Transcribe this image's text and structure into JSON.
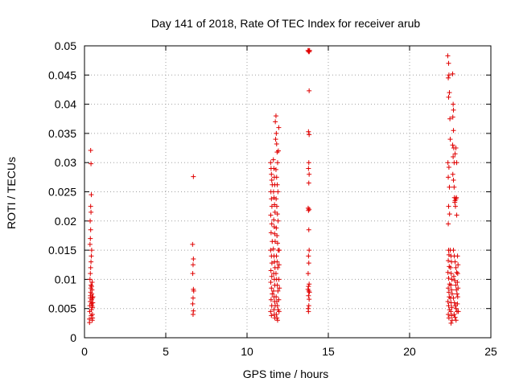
{
  "chart_data": {
    "type": "scatter",
    "title": "Day 141 of 2018, Rate Of TEC Index for receiver arub",
    "xlabel": "GPS time / hours",
    "ylabel": "ROTI / TECUs",
    "xlim": [
      0,
      25
    ],
    "ylim": [
      0,
      0.05
    ],
    "x_ticks": [
      0,
      5,
      10,
      15,
      20,
      25
    ],
    "y_ticks": [
      0,
      0.005,
      0.01,
      0.015,
      0.02,
      0.025,
      0.03,
      0.035,
      0.04,
      0.045,
      0.05
    ],
    "x_tick_labels": [
      "0",
      "5",
      "10",
      "15",
      "20",
      "25"
    ],
    "y_tick_labels": [
      "0",
      "0.005",
      "0.01",
      "0.015",
      "0.02",
      "0.025",
      "0.03",
      "0.035",
      "0.04",
      "0.045",
      "0.05"
    ],
    "grid": true,
    "marker": "+",
    "marker_color": "#e00000",
    "series": [
      {
        "name": "ROTI",
        "points": [
          [
            0.3,
            0.0032
          ],
          [
            0.32,
            0.0045
          ],
          [
            0.33,
            0.0055
          ],
          [
            0.35,
            0.0062
          ],
          [
            0.36,
            0.0068
          ],
          [
            0.37,
            0.0072
          ],
          [
            0.38,
            0.0078
          ],
          [
            0.39,
            0.0085
          ],
          [
            0.4,
            0.009
          ],
          [
            0.41,
            0.0038
          ],
          [
            0.42,
            0.0048
          ],
          [
            0.43,
            0.0058
          ],
          [
            0.44,
            0.0065
          ],
          [
            0.45,
            0.0075
          ],
          [
            0.46,
            0.0082
          ],
          [
            0.47,
            0.0095
          ],
          [
            0.48,
            0.003
          ],
          [
            0.49,
            0.004
          ],
          [
            0.5,
            0.0052
          ],
          [
            0.51,
            0.006
          ],
          [
            0.52,
            0.007
          ],
          [
            0.34,
            0.01
          ],
          [
            0.36,
            0.011
          ],
          [
            0.38,
            0.012
          ],
          [
            0.4,
            0.013
          ],
          [
            0.42,
            0.014
          ],
          [
            0.44,
            0.015
          ],
          [
            0.34,
            0.016
          ],
          [
            0.36,
            0.017
          ],
          [
            0.38,
            0.0185
          ],
          [
            0.35,
            0.02
          ],
          [
            0.4,
            0.0215
          ],
          [
            0.38,
            0.0225
          ],
          [
            0.42,
            0.0245
          ],
          [
            0.4,
            0.0298
          ],
          [
            0.38,
            0.0321
          ],
          [
            0.46,
            0.0055
          ],
          [
            0.48,
            0.0068
          ],
          [
            0.44,
            0.0088
          ],
          [
            0.5,
            0.0034
          ],
          [
            0.31,
            0.0026
          ],
          [
            6.7,
            0.0276
          ],
          [
            6.65,
            0.016
          ],
          [
            6.7,
            0.0135
          ],
          [
            6.68,
            0.0125
          ],
          [
            6.66,
            0.011
          ],
          [
            6.7,
            0.0083
          ],
          [
            6.72,
            0.008
          ],
          [
            6.68,
            0.0068
          ],
          [
            6.66,
            0.0058
          ],
          [
            6.7,
            0.0046
          ],
          [
            6.68,
            0.004
          ],
          [
            11.45,
            0.03
          ],
          [
            11.48,
            0.029
          ],
          [
            11.5,
            0.028
          ],
          [
            11.52,
            0.027
          ],
          [
            11.55,
            0.0262
          ],
          [
            11.47,
            0.025
          ],
          [
            11.5,
            0.0238
          ],
          [
            11.53,
            0.0225
          ],
          [
            11.46,
            0.021
          ],
          [
            11.52,
            0.0195
          ],
          [
            11.48,
            0.018
          ],
          [
            11.55,
            0.0165
          ],
          [
            11.45,
            0.015
          ],
          [
            11.5,
            0.014
          ],
          [
            11.53,
            0.0128
          ],
          [
            11.47,
            0.0115
          ],
          [
            11.52,
            0.0105
          ],
          [
            11.46,
            0.0095
          ],
          [
            11.5,
            0.0085
          ],
          [
            11.55,
            0.0075
          ],
          [
            11.48,
            0.0065
          ],
          [
            11.52,
            0.0055
          ],
          [
            11.45,
            0.0045
          ],
          [
            11.5,
            0.0038
          ],
          [
            11.62,
            0.0305
          ],
          [
            11.65,
            0.029
          ],
          [
            11.68,
            0.0275
          ],
          [
            11.7,
            0.0262
          ],
          [
            11.63,
            0.025
          ],
          [
            11.66,
            0.024
          ],
          [
            11.69,
            0.0228
          ],
          [
            11.72,
            0.0215
          ],
          [
            11.64,
            0.0202
          ],
          [
            11.67,
            0.019
          ],
          [
            11.7,
            0.0178
          ],
          [
            11.73,
            0.0165
          ],
          [
            11.62,
            0.0152
          ],
          [
            11.66,
            0.014
          ],
          [
            11.69,
            0.013
          ],
          [
            11.72,
            0.012
          ],
          [
            11.64,
            0.011
          ],
          [
            11.68,
            0.01
          ],
          [
            11.71,
            0.009
          ],
          [
            11.63,
            0.008
          ],
          [
            11.66,
            0.007
          ],
          [
            11.7,
            0.0062
          ],
          [
            11.73,
            0.0055
          ],
          [
            11.65,
            0.0048
          ],
          [
            11.68,
            0.004
          ],
          [
            11.71,
            0.0034
          ],
          [
            11.8,
            0.035
          ],
          [
            11.82,
            0.0332
          ],
          [
            11.85,
            0.0318
          ],
          [
            11.88,
            0.03
          ],
          [
            11.78,
            0.0288
          ],
          [
            11.82,
            0.0275
          ],
          [
            11.86,
            0.0262
          ],
          [
            11.9,
            0.025
          ],
          [
            11.79,
            0.0238
          ],
          [
            11.83,
            0.0225
          ],
          [
            11.87,
            0.0212
          ],
          [
            11.91,
            0.02
          ],
          [
            11.8,
            0.0188
          ],
          [
            11.84,
            0.0175
          ],
          [
            11.88,
            0.0162
          ],
          [
            11.92,
            0.015
          ],
          [
            11.81,
            0.014
          ],
          [
            11.85,
            0.013
          ],
          [
            11.89,
            0.012
          ],
          [
            11.78,
            0.011
          ],
          [
            11.82,
            0.01
          ],
          [
            11.86,
            0.009
          ],
          [
            11.9,
            0.008
          ],
          [
            11.79,
            0.007
          ],
          [
            11.83,
            0.0062
          ],
          [
            11.87,
            0.0055
          ],
          [
            11.91,
            0.0048
          ],
          [
            11.8,
            0.004
          ],
          [
            11.84,
            0.0034
          ],
          [
            11.88,
            0.003
          ],
          [
            11.74,
            0.037
          ],
          [
            11.78,
            0.038
          ],
          [
            11.95,
            0.036
          ],
          [
            11.76,
            0.034
          ],
          [
            11.93,
            0.032
          ],
          [
            11.98,
            0.015
          ],
          [
            11.97,
            0.0125
          ],
          [
            11.96,
            0.01
          ],
          [
            11.99,
            0.0085
          ],
          [
            11.95,
            0.0065
          ],
          [
            11.97,
            0.0045
          ],
          [
            13.75,
            0.0492
          ],
          [
            13.8,
            0.0492
          ],
          [
            13.85,
            0.0492
          ],
          [
            13.78,
            0.049
          ],
          [
            13.83,
            0.049
          ],
          [
            13.82,
            0.0423
          ],
          [
            13.78,
            0.0353
          ],
          [
            13.82,
            0.0348
          ],
          [
            13.8,
            0.03
          ],
          [
            13.78,
            0.029
          ],
          [
            13.82,
            0.028
          ],
          [
            13.8,
            0.0265
          ],
          [
            13.76,
            0.0222
          ],
          [
            13.82,
            0.022
          ],
          [
            13.78,
            0.0218
          ],
          [
            13.8,
            0.0185
          ],
          [
            13.82,
            0.015
          ],
          [
            13.78,
            0.014
          ],
          [
            13.8,
            0.0128
          ],
          [
            13.76,
            0.011
          ],
          [
            13.82,
            0.0092
          ],
          [
            13.78,
            0.0088
          ],
          [
            13.75,
            0.0083
          ],
          [
            13.8,
            0.008
          ],
          [
            13.84,
            0.0078
          ],
          [
            13.78,
            0.0072
          ],
          [
            13.82,
            0.0066
          ],
          [
            13.8,
            0.0055
          ],
          [
            13.76,
            0.005
          ],
          [
            13.78,
            0.0045
          ],
          [
            22.35,
            0.0483
          ],
          [
            22.4,
            0.047
          ],
          [
            22.42,
            0.045
          ],
          [
            22.38,
            0.0445
          ],
          [
            22.45,
            0.042
          ],
          [
            22.4,
            0.0412
          ],
          [
            22.48,
            0.0375
          ],
          [
            22.5,
            0.034
          ],
          [
            22.36,
            0.03
          ],
          [
            22.42,
            0.0292
          ],
          [
            22.38,
            0.0275
          ],
          [
            22.45,
            0.0258
          ],
          [
            22.4,
            0.0225
          ],
          [
            22.46,
            0.0212
          ],
          [
            22.38,
            0.0195
          ],
          [
            22.4,
            0.015
          ],
          [
            22.42,
            0.0142
          ],
          [
            22.38,
            0.0132
          ],
          [
            22.44,
            0.0122
          ],
          [
            22.36,
            0.0112
          ],
          [
            22.4,
            0.0102
          ],
          [
            22.46,
            0.0092
          ],
          [
            22.38,
            0.0085
          ],
          [
            22.42,
            0.0078
          ],
          [
            22.44,
            0.007
          ],
          [
            22.36,
            0.0062
          ],
          [
            22.4,
            0.0055
          ],
          [
            22.46,
            0.0048
          ],
          [
            22.38,
            0.004
          ],
          [
            22.42,
            0.0034
          ],
          [
            22.5,
            0.015
          ],
          [
            22.55,
            0.014
          ],
          [
            22.58,
            0.013
          ],
          [
            22.52,
            0.012
          ],
          [
            22.56,
            0.011
          ],
          [
            22.6,
            0.01
          ],
          [
            22.54,
            0.009
          ],
          [
            22.58,
            0.0082
          ],
          [
            22.62,
            0.0075
          ],
          [
            22.52,
            0.0068
          ],
          [
            22.56,
            0.006
          ],
          [
            22.6,
            0.0052
          ],
          [
            22.54,
            0.0045
          ],
          [
            22.58,
            0.0038
          ],
          [
            22.62,
            0.003
          ],
          [
            22.55,
            0.0025
          ],
          [
            22.65,
            0.0452
          ],
          [
            22.68,
            0.04
          ],
          [
            22.7,
            0.039
          ],
          [
            22.66,
            0.0378
          ],
          [
            22.7,
            0.0355
          ],
          [
            22.65,
            0.033
          ],
          [
            22.72,
            0.0325
          ],
          [
            22.68,
            0.031
          ],
          [
            22.74,
            0.03
          ],
          [
            22.66,
            0.028
          ],
          [
            22.7,
            0.027
          ],
          [
            22.74,
            0.0258
          ],
          [
            22.76,
            0.024
          ],
          [
            22.8,
            0.0235
          ],
          [
            22.85,
            0.0238
          ],
          [
            22.78,
            0.0232
          ],
          [
            22.88,
            0.024
          ],
          [
            22.82,
            0.0225
          ],
          [
            22.9,
            0.021
          ],
          [
            22.7,
            0.015
          ],
          [
            22.75,
            0.014
          ],
          [
            22.8,
            0.013
          ],
          [
            22.85,
            0.012
          ],
          [
            22.9,
            0.0112
          ],
          [
            22.72,
            0.0105
          ],
          [
            22.78,
            0.0098
          ],
          [
            22.84,
            0.009
          ],
          [
            22.88,
            0.0082
          ],
          [
            22.92,
            0.0075
          ],
          [
            22.7,
            0.0068
          ],
          [
            22.76,
            0.006
          ],
          [
            22.82,
            0.0055
          ],
          [
            22.86,
            0.005
          ],
          [
            22.92,
            0.0045
          ],
          [
            22.74,
            0.004
          ],
          [
            22.8,
            0.0035
          ],
          [
            22.86,
            0.003
          ],
          [
            22.95,
            0.014
          ],
          [
            22.98,
            0.0125
          ],
          [
            22.96,
            0.011
          ],
          [
            22.94,
            0.0095
          ],
          [
            22.98,
            0.0085
          ],
          [
            22.96,
            0.007
          ],
          [
            22.94,
            0.0058
          ],
          [
            23.0,
            0.0045
          ],
          [
            22.85,
            0.0325
          ],
          [
            22.8,
            0.0315
          ],
          [
            22.9,
            0.03
          ]
        ]
      }
    ]
  }
}
